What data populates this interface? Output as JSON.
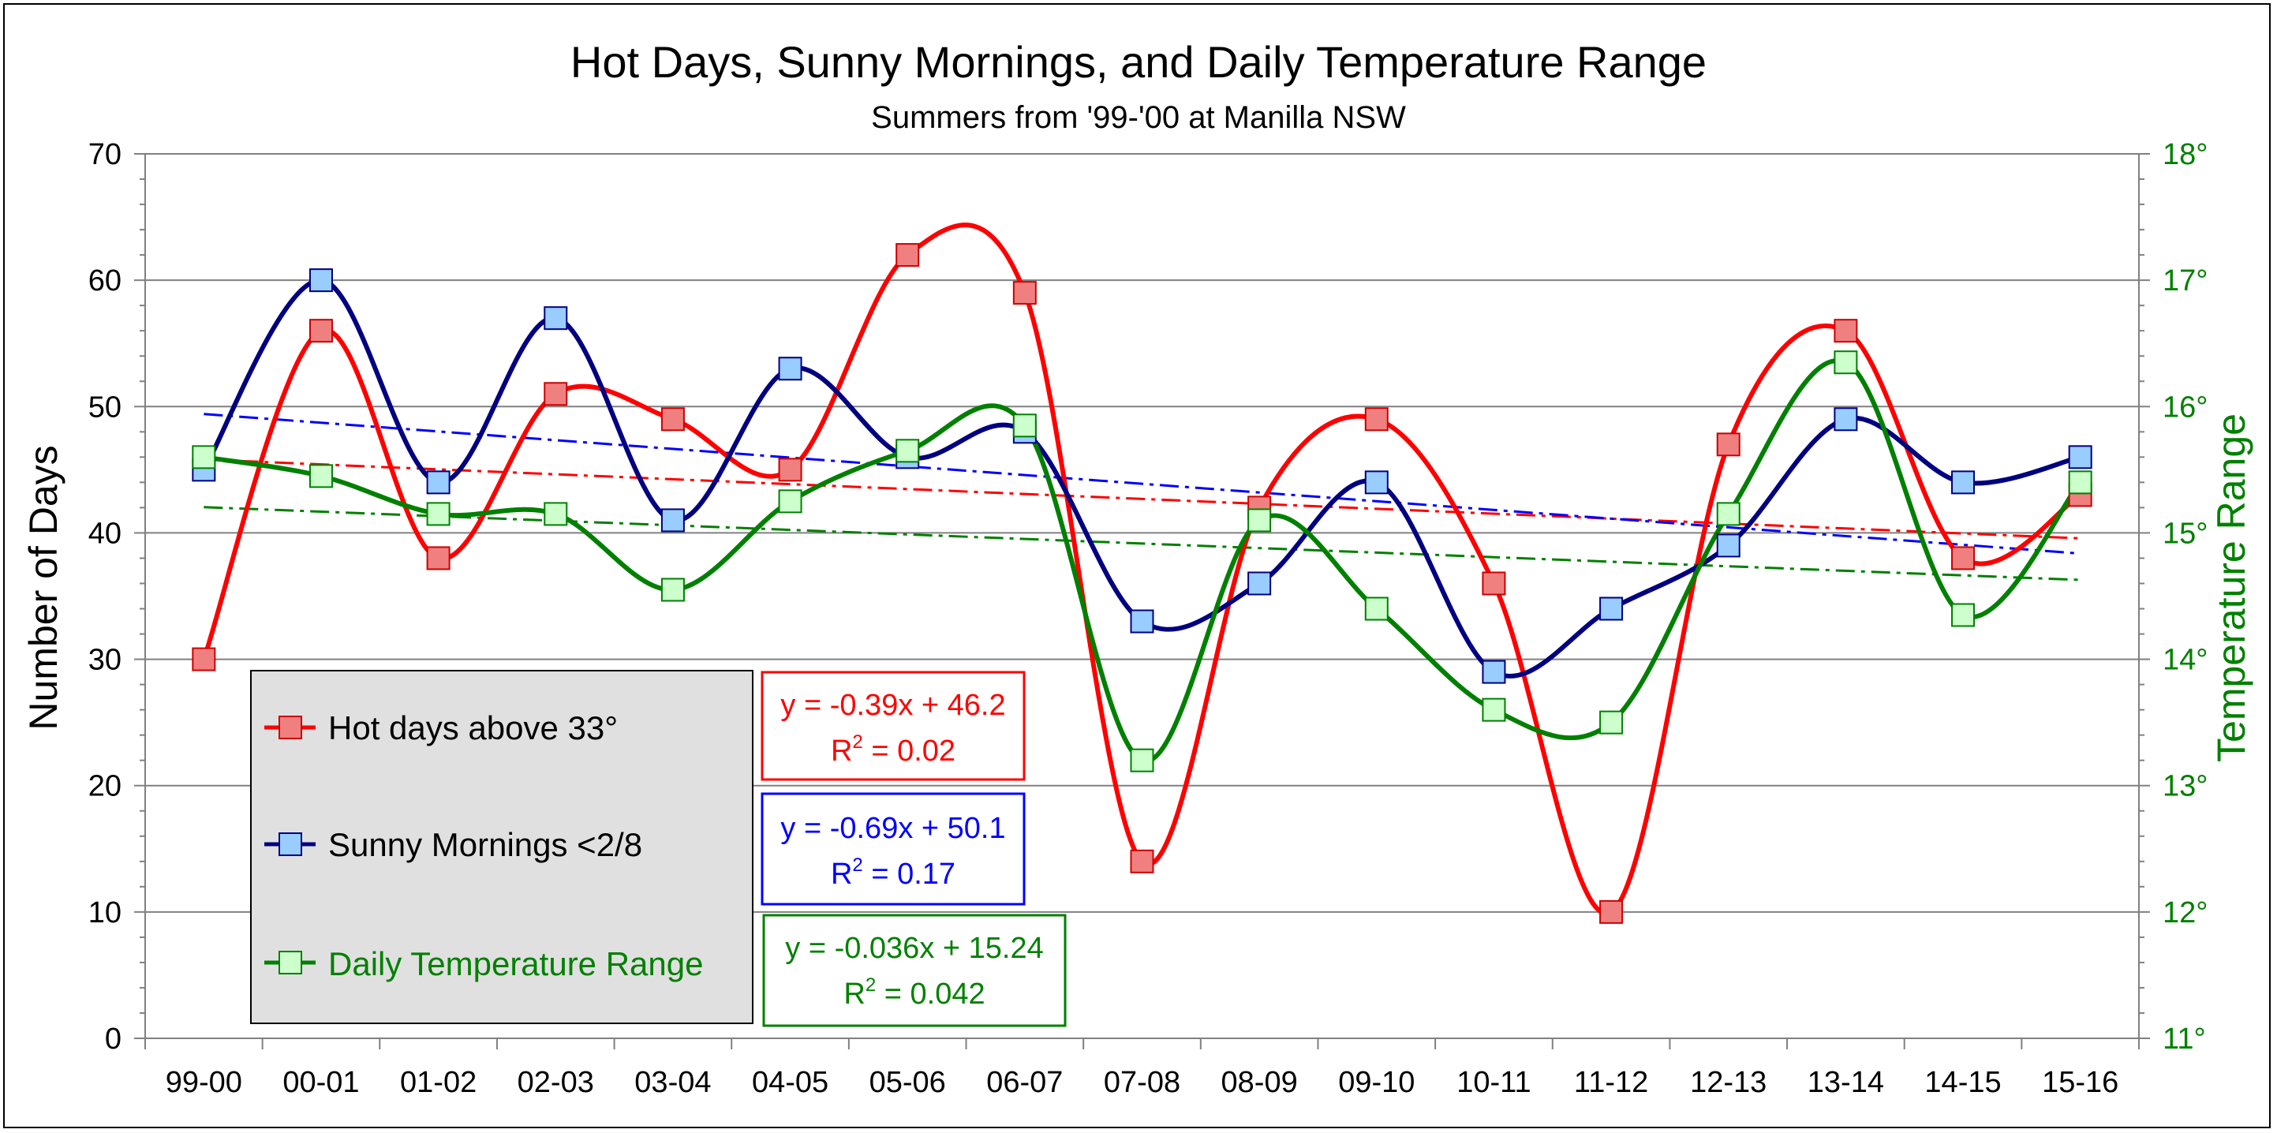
{
  "chart_data": {
    "type": "line",
    "title": "Hot Days, Sunny Mornings, and Daily Temperature Range",
    "subtitle": "Summers from '99-'00 at Manilla NSW",
    "ylabel": "Number of Days",
    "y2label": "Temperature Range",
    "categories": [
      "99-00",
      "00-01",
      "01-02",
      "02-03",
      "03-04",
      "04-05",
      "05-06",
      "06-07",
      "07-08",
      "08-09",
      "09-10",
      "10-11",
      "11-12",
      "12-13",
      "13-14",
      "14-15",
      "15-16"
    ],
    "ylim": [
      0,
      70
    ],
    "yticks": [
      0,
      10,
      20,
      30,
      40,
      50,
      60,
      70
    ],
    "y2lim": [
      11,
      18
    ],
    "y2ticks": [
      "11°",
      "12°",
      "13°",
      "14°",
      "15°",
      "16°",
      "17°",
      "18°"
    ],
    "grid": true,
    "legend_position": "bottom-left",
    "colors": {
      "hot": "#ff0000",
      "sunny": "#000080",
      "range": "#008000",
      "hot_marker": "#f08080",
      "sunny_marker": "#99ccff",
      "range_marker": "#ccffcc",
      "trend_blue": "#0000ff",
      "legend_bg": "#e0e0e0"
    },
    "series": [
      {
        "name": "Hot days above 33°",
        "axis": "left",
        "values": [
          30,
          56,
          38,
          51,
          49,
          45,
          62,
          59,
          14,
          42,
          49,
          36,
          10,
          47,
          56,
          38,
          43
        ]
      },
      {
        "name": "Sunny Mornings <2/8",
        "axis": "left",
        "values": [
          45,
          60,
          44,
          57,
          41,
          53,
          46,
          48,
          33,
          36,
          44,
          29,
          34,
          39,
          49,
          44,
          46
        ]
      },
      {
        "name": "Daily Temperature Range",
        "axis": "right",
        "values": [
          15.6,
          15.45,
          15.15,
          15.15,
          14.55,
          15.25,
          15.65,
          15.85,
          13.2,
          15.1,
          14.4,
          13.6,
          13.5,
          15.15,
          16.35,
          14.35,
          15.4
        ]
      }
    ],
    "trendlines": [
      {
        "series": "Hot days above 33°",
        "slope": -0.39,
        "intercept": 46.2,
        "axis": "left",
        "equation": "y = -0.39x + 46.2",
        "r2_label": "R",
        "r2_value": " = 0.02"
      },
      {
        "series": "Sunny Mornings <2/8",
        "slope": -0.69,
        "intercept": 50.1,
        "axis": "left",
        "equation": "y = -0.69x + 50.1",
        "r2_label": "R",
        "r2_value": " = 0.17"
      },
      {
        "series": "Daily Temperature Range",
        "slope": -0.036,
        "intercept": 15.24,
        "axis": "right",
        "equation": "y = -0.036x + 15.24",
        "r2_label": "R",
        "r2_value": " = 0.042"
      }
    ]
  }
}
